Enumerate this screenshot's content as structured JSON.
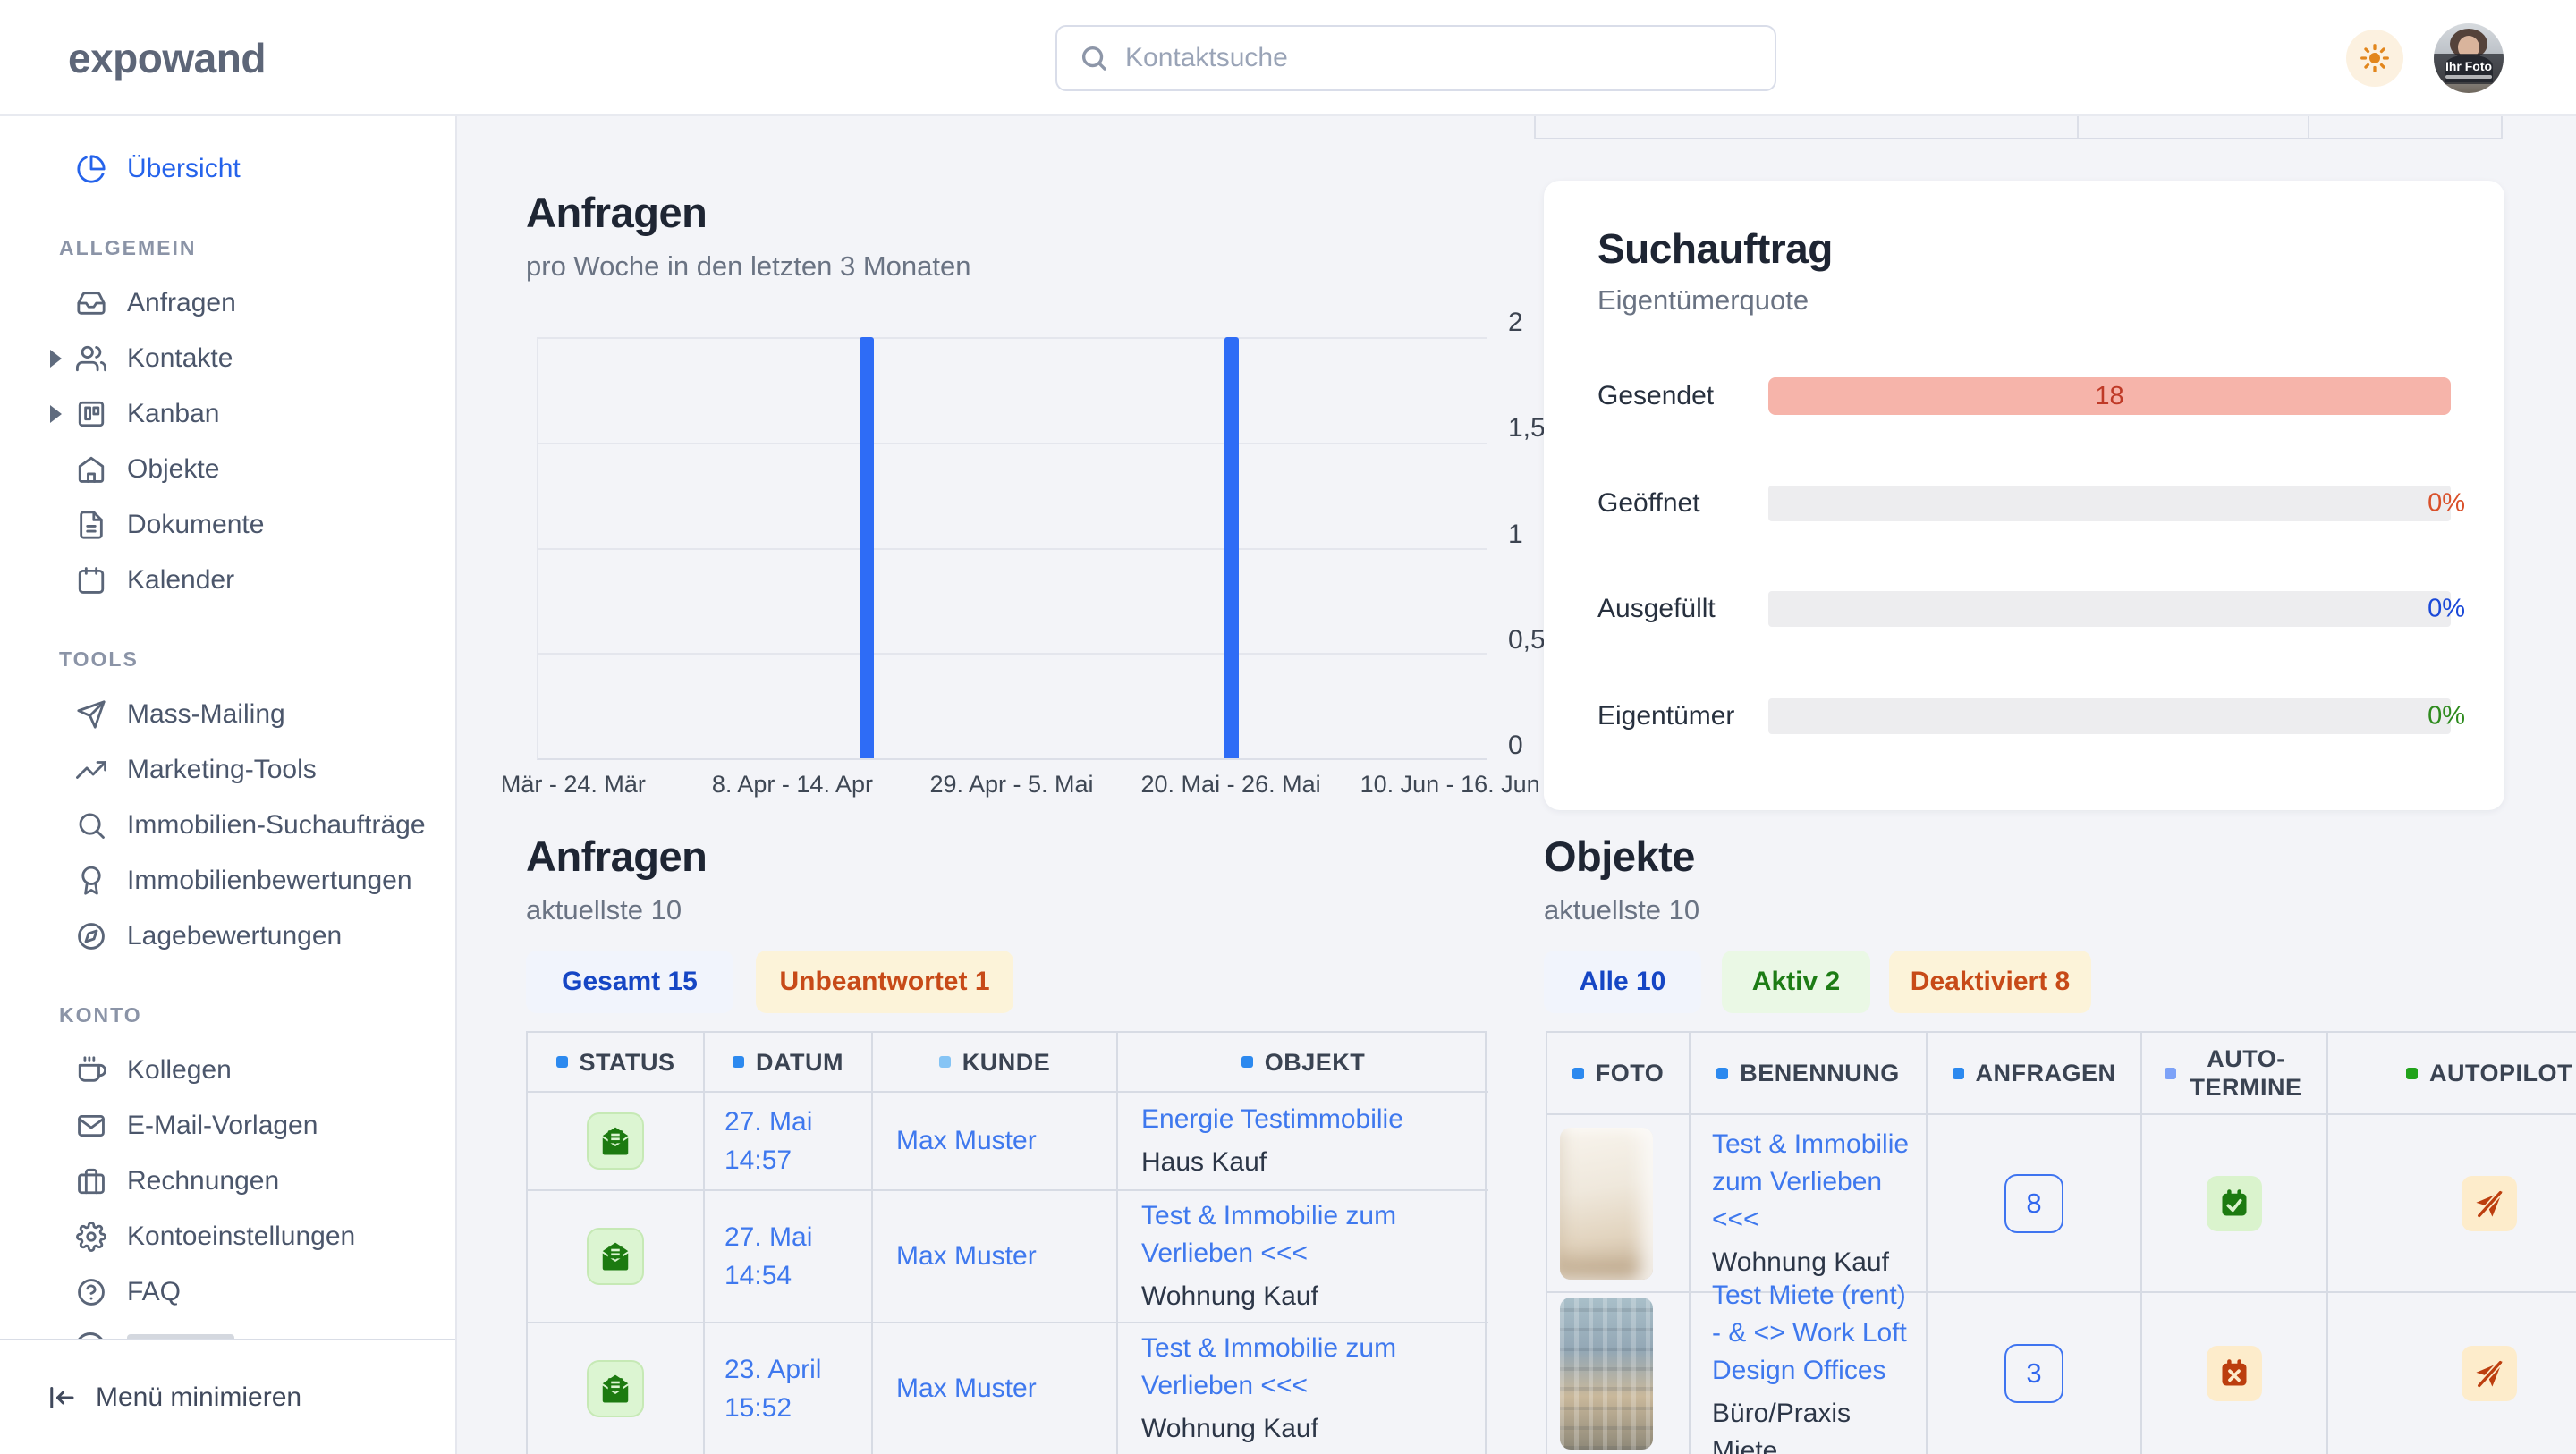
{
  "colors": {
    "accent_blue": "#2563eb",
    "link_blue": "#3e78ee",
    "chart_bar_blue": "#2e6cf6",
    "chip_blue_text": "#1646c4",
    "chip_orange_text": "#c74a18",
    "chip_green_text": "#1d7c15",
    "suchauftrag_bar_salmon": "#f6b4aa",
    "suchauftrag_value_colors": [
      "#bf3a27",
      "#d9502a",
      "#1b49d8",
      "#2e8b1e"
    ],
    "status_icon_green": "#1c7a10",
    "warn_icon_orange": "#bc3e0e",
    "bullet_blue": "#2c89ef",
    "bullet_light_blue": "#85c4f5",
    "bullet_periwinkle": "#7da2f8",
    "bullet_green": "#22a31c",
    "theme_sun_orange": "#e2861c"
  },
  "topbar": {
    "logo": "expowand",
    "search_placeholder": "Kontaktsuche",
    "avatar_label": "Ihr Foto"
  },
  "sidebar": {
    "overview_label": "Übersicht",
    "sections": [
      {
        "title": "ALLGEMEIN",
        "items": [
          {
            "label": "Anfragen",
            "icon": "inbox"
          },
          {
            "label": "Kontakte",
            "icon": "users",
            "expandable": true
          },
          {
            "label": "Kanban",
            "icon": "kanban",
            "expandable": true
          },
          {
            "label": "Objekte",
            "icon": "home"
          },
          {
            "label": "Dokumente",
            "icon": "file-text"
          },
          {
            "label": "Kalender",
            "icon": "calendar"
          }
        ]
      },
      {
        "title": "TOOLS",
        "items": [
          {
            "label": "Mass-Mailing",
            "icon": "send"
          },
          {
            "label": "Marketing-Tools",
            "icon": "trending-up"
          },
          {
            "label": "Immobilien-Suchaufträge",
            "icon": "search"
          },
          {
            "label": "Immobilienbewertungen",
            "icon": "award"
          },
          {
            "label": "Lagebewertungen",
            "icon": "compass"
          }
        ]
      },
      {
        "title": "KONTO",
        "items": [
          {
            "label": "Kollegen",
            "icon": "coffee"
          },
          {
            "label": "E-Mail-Vorlagen",
            "icon": "mail"
          },
          {
            "label": "Rechnungen",
            "icon": "briefcase"
          },
          {
            "label": "Kontoeinstellungen",
            "icon": "gear"
          },
          {
            "label": "FAQ",
            "icon": "help-circle"
          }
        ]
      }
    ],
    "collapse_label": "Menü minimieren"
  },
  "anfragen_chart": {
    "title": "Anfragen",
    "subtitle": "pro Woche in den letzten 3 Monaten",
    "chart_data": {
      "type": "bar",
      "num_bins": 13,
      "values": [
        0,
        0,
        0,
        0,
        2,
        0,
        0,
        0,
        0,
        2,
        0,
        0,
        0
      ],
      "x_ticks": [
        {
          "bin": 1,
          "label": "Mär - 24. Mär"
        },
        {
          "bin": 4,
          "label": "8. Apr - 14. Apr"
        },
        {
          "bin": 7,
          "label": "29. Apr - 5. Mai"
        },
        {
          "bin": 10,
          "label": "20. Mai - 26. Mai"
        },
        {
          "bin": 13,
          "label": "10. Jun - 16. Jun"
        }
      ],
      "ylim": [
        0,
        2
      ],
      "y_ticks": [
        {
          "v": 0,
          "label": "0"
        },
        {
          "v": 0.5,
          "label": "0,5"
        },
        {
          "v": 1,
          "label": "1"
        },
        {
          "v": 1.5,
          "label": "1,5"
        },
        {
          "v": 2,
          "label": "2"
        }
      ],
      "grid": true,
      "legend": "none",
      "bar_color": "#2e6cf6"
    }
  },
  "suchauftrag": {
    "title": "Suchauftrag",
    "subtitle": "Eigentümerquote",
    "rows": [
      {
        "label": "Gesendet",
        "value": "18",
        "bar": "filled"
      },
      {
        "label": "Geöffnet",
        "value": "0%",
        "bar": "empty"
      },
      {
        "label": "Ausgefüllt",
        "value": "0%",
        "bar": "empty"
      },
      {
        "label": "Eigentümer",
        "value": "0%",
        "bar": "empty"
      }
    ]
  },
  "anfragen_list": {
    "title": "Anfragen",
    "subtitle": "aktuellste 10",
    "chips": [
      {
        "label": "Gesamt 15"
      },
      {
        "label": "Unbeantwortet 1"
      }
    ],
    "columns": [
      "STATUS",
      "DATUM",
      "KUNDE",
      "OBJEKT"
    ],
    "rows": [
      {
        "datum_line1": "27. Mai",
        "datum_line2": "14:57",
        "kunde": "Max Muster",
        "objekt": "Energie Testimmobilie",
        "objekt_typ": "Haus Kauf"
      },
      {
        "datum_line1": "27. Mai",
        "datum_line2": "14:54",
        "kunde": "Max Muster",
        "objekt": "Test & Immobilie zum Verlieben <<<",
        "objekt_typ": "Wohnung Kauf"
      },
      {
        "datum_line1": "23. April",
        "datum_line2": "15:52",
        "kunde": "Max Muster",
        "objekt": "Test & Immobilie zum Verlieben <<<",
        "objekt_typ": "Wohnung Kauf"
      }
    ]
  },
  "objekte_list": {
    "title": "Objekte",
    "subtitle": "aktuellste 10",
    "chips": [
      {
        "label": "Alle 10"
      },
      {
        "label": "Aktiv 2"
      },
      {
        "label": "Deaktiviert 8"
      }
    ],
    "columns": [
      "FOTO",
      "BENENNUNG",
      "ANFRAGEN",
      "AUTO-TERMINE",
      "AUTOPILOT"
    ],
    "rows": [
      {
        "photo": "interior",
        "benennung": "Test & Immobilie zum Verlieben <<<",
        "typ": "Wohnung Kauf",
        "anfragen": "8",
        "auto_termine": "calendar-check",
        "autopilot": "send-off"
      },
      {
        "photo": "building",
        "benennung": "Test Miete (rent) - & <> Work Loft Design Offices",
        "typ": "Büro/Praxis Miete",
        "anfragen": "3",
        "auto_termine": "calendar-x",
        "autopilot": "send-off"
      }
    ]
  }
}
